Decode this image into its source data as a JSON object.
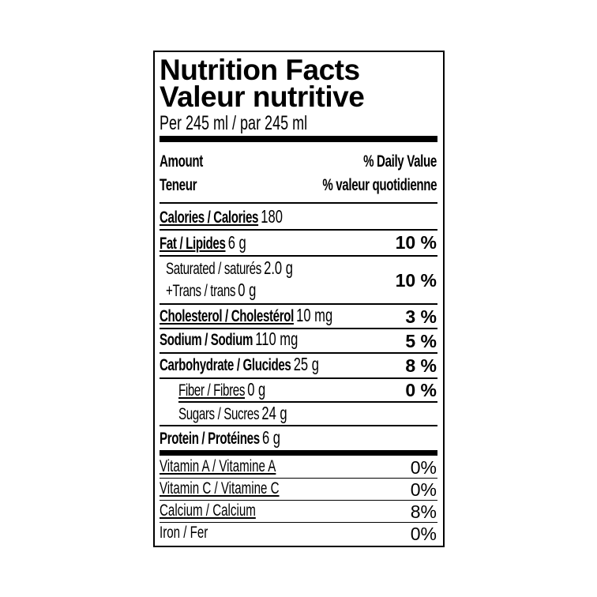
{
  "title_en": "Nutrition Facts",
  "title_fr": "Valeur nutritive",
  "serving": "Per 245 ml / par 245 ml",
  "header": {
    "amount": "Amount",
    "teneur": "Teneur",
    "dv_en": "% Daily Value",
    "dv_fr": "% valeur quotidienne"
  },
  "calories": {
    "label": "Calories / Calories",
    "value": "180"
  },
  "fat": {
    "label": "Fat / Lipides",
    "value": "6 g",
    "dv": "10 %"
  },
  "saturated": {
    "label": "Saturated / saturés",
    "value": "2.0 g"
  },
  "trans": {
    "label": "+Trans / trans",
    "value": "0 g",
    "dv": "10 %"
  },
  "cholesterol": {
    "label": "Cholesterol / Cholestérol",
    "value": "10 mg",
    "dv": "3 %"
  },
  "sodium": {
    "label": "Sodium / Sodium",
    "value": "110 mg",
    "dv": "5 %"
  },
  "carbohydrate": {
    "label": "Carbohydrate / Glucides",
    "value": "25 g",
    "dv": "8 %"
  },
  "fiber": {
    "label": "Fiber / Fibres",
    "value": "0 g",
    "dv": "0 %"
  },
  "sugars": {
    "label": "Sugars / Sucres",
    "value": "24 g"
  },
  "protein": {
    "label": "Protein / Protéines",
    "value": "6 g"
  },
  "vitamins": [
    {
      "label": "Vitamin A / Vitamine A",
      "dv": "0%"
    },
    {
      "label": "Vitamin C / Vitamine C",
      "dv": "0%"
    },
    {
      "label": "Calcium  / Calcium",
      "dv": "8%"
    },
    {
      "label": "Iron / Fer",
      "dv": "0%"
    }
  ]
}
